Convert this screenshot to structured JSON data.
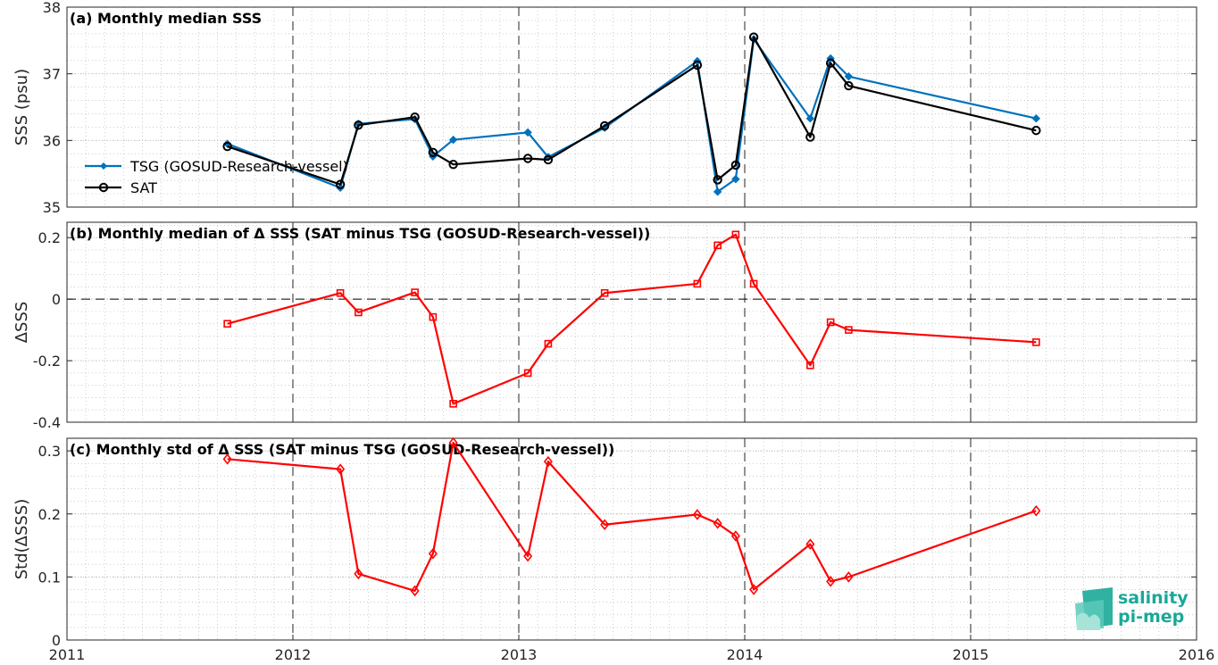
{
  "x_axis": {
    "ticks": [
      "2011",
      "2012",
      "2013",
      "2014",
      "2015",
      "2016"
    ],
    "range": [
      2011,
      2016
    ]
  },
  "logo": {
    "line1": "salinity",
    "line2": "pi-mep",
    "color": "#1aa898"
  },
  "colors": {
    "tsg": "#0072bd",
    "sat": "#000000",
    "diff": "#ff0000",
    "grid": "#bcbcbc"
  },
  "chart_data": [
    {
      "type": "line",
      "title": "(a) Monthly median SSS",
      "ylabel": "SSS (psu)",
      "ylim": [
        35,
        38
      ],
      "yticks": [
        "35",
        "36",
        "37",
        "38"
      ],
      "grid": "on",
      "legend_position": "left",
      "x": [
        2011.71,
        2012.21,
        2012.29,
        2012.54,
        2012.62,
        2012.71,
        2013.04,
        2013.13,
        2013.38,
        2013.79,
        2013.88,
        2013.96,
        2014.04,
        2014.29,
        2014.38,
        2014.46,
        2015.29
      ],
      "series": [
        {
          "name": "TSG (GOSUD-Research-vessel)",
          "marker": "dot",
          "color": "#0072bd",
          "values": [
            35.95,
            35.29,
            36.25,
            36.32,
            35.76,
            36.01,
            36.12,
            35.75,
            36.19,
            37.19,
            35.23,
            35.42,
            37.52,
            36.33,
            37.23,
            36.96,
            36.33
          ]
        },
        {
          "name": "SAT",
          "marker": "circle",
          "color": "#000000",
          "values": [
            35.91,
            35.34,
            36.23,
            36.35,
            35.82,
            35.64,
            35.73,
            35.71,
            36.22,
            37.13,
            35.41,
            35.63,
            37.55,
            36.05,
            37.16,
            36.82,
            36.15
          ]
        }
      ]
    },
    {
      "type": "line",
      "title": "(b) Monthly median of Δ SSS (SAT minus TSG (GOSUD-Research-vessel))",
      "ylabel": "ΔSSS",
      "ylim": [
        -0.4,
        0.25
      ],
      "yticks": [
        "-0.4",
        "-0.2",
        "0",
        "0.2"
      ],
      "grid": "on",
      "x": [
        2011.71,
        2012.21,
        2012.29,
        2012.54,
        2012.62,
        2012.71,
        2013.04,
        2013.13,
        2013.38,
        2013.79,
        2013.88,
        2013.96,
        2014.04,
        2014.29,
        2014.38,
        2014.46,
        2015.29
      ],
      "series": [
        {
          "name": "",
          "marker": "square",
          "color": "#ff0000",
          "values": [
            -0.08,
            0.02,
            -0.043,
            0.022,
            -0.058,
            -0.34,
            -0.24,
            -0.145,
            0.02,
            0.05,
            0.175,
            0.21,
            0.05,
            -0.215,
            -0.075,
            -0.1,
            -0.14
          ]
        }
      ]
    },
    {
      "type": "line",
      "title": "(c) Monthly std of Δ SSS (SAT minus TSG (GOSUD-Research-vessel))",
      "ylabel": "Std(ΔSSS)",
      "ylim": [
        0,
        0.32
      ],
      "yticks": [
        "0",
        "0.1",
        "0.2",
        "0.3"
      ],
      "grid": "on",
      "x": [
        2011.71,
        2012.21,
        2012.29,
        2012.54,
        2012.62,
        2012.71,
        2013.04,
        2013.13,
        2013.38,
        2013.79,
        2013.88,
        2013.96,
        2014.04,
        2014.29,
        2014.38,
        2014.46,
        2015.29
      ],
      "series": [
        {
          "name": "",
          "marker": "diamond",
          "color": "#ff0000",
          "values": [
            0.287,
            0.271,
            0.105,
            0.078,
            0.137,
            0.313,
            0.133,
            0.283,
            0.183,
            0.199,
            0.185,
            0.165,
            0.08,
            0.152,
            0.093,
            0.1,
            0.205
          ]
        }
      ]
    }
  ]
}
